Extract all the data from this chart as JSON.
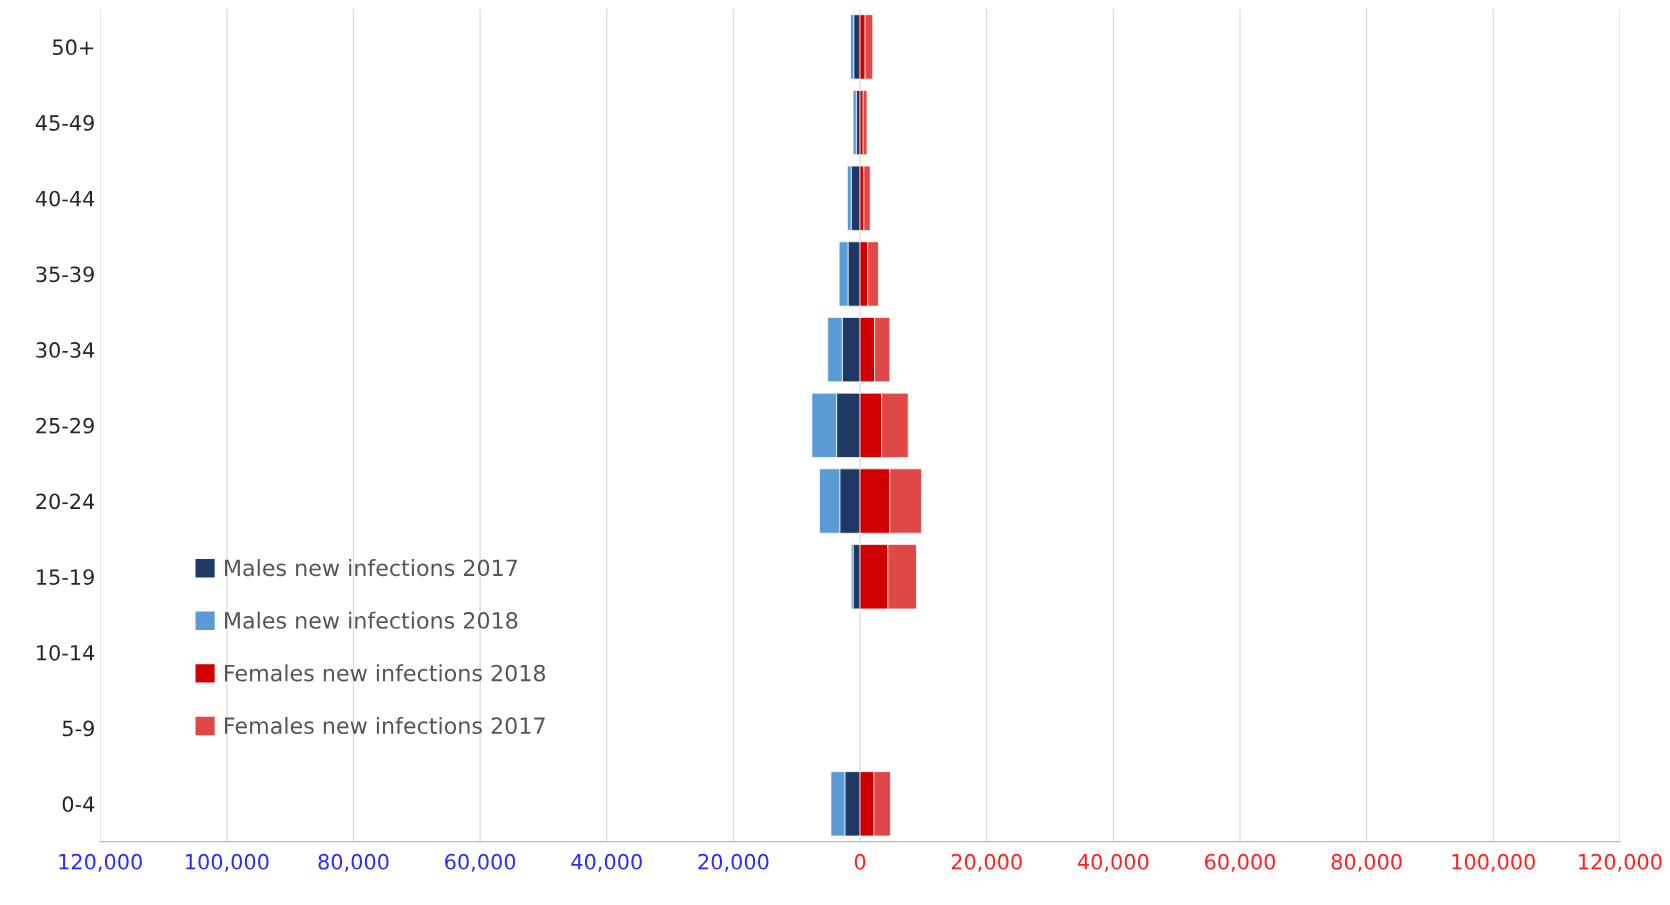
{
  "chart_data": {
    "type": "bar",
    "orientation": "horizontal",
    "stacked": true,
    "categories": [
      "50+",
      "45-49",
      "40-44",
      "35-39",
      "30-34",
      "25-29",
      "20-24",
      "15-19",
      "10-14",
      "5-9",
      "0-4"
    ],
    "series": [
      {
        "name": "Males new infections 2017",
        "color": "#203864",
        "values": [
          -1000,
          -600,
          -1400,
          -1900,
          -2800,
          -3700,
          -3200,
          -1100,
          null,
          null,
          -2400
        ]
      },
      {
        "name": "Males new infections 2018",
        "color": "#5b9bd5",
        "values": [
          -500,
          -500,
          -600,
          -1400,
          -2300,
          -3900,
          -3200,
          -300,
          null,
          null,
          -2200
        ]
      },
      {
        "name": "Females new infections 2018",
        "color": "#d00000",
        "values": [
          800,
          500,
          600,
          1200,
          2300,
          3400,
          4700,
          4400,
          null,
          null,
          2200
        ]
      },
      {
        "name": "Females new infections 2017",
        "color": "#e04848",
        "values": [
          1200,
          600,
          1000,
          1700,
          2400,
          4200,
          5000,
          4500,
          null,
          null,
          2600
        ]
      }
    ],
    "xlim": [
      -120000,
      120000
    ],
    "xticks": [
      {
        "value": -120000,
        "label": "120,000"
      },
      {
        "value": -100000,
        "label": "100,000"
      },
      {
        "value": -80000,
        "label": "80,000"
      },
      {
        "value": -60000,
        "label": "60,000"
      },
      {
        "value": -40000,
        "label": "40,000"
      },
      {
        "value": -20000,
        "label": "20,000"
      },
      0,
      {
        "value": 20000,
        "label": "20,000"
      },
      {
        "value": 40000,
        "label": "40,000"
      },
      {
        "value": 60000,
        "label": "60,000"
      },
      {
        "value": 80000,
        "label": "80,000"
      },
      {
        "value": 100000,
        "label": "100,000"
      },
      {
        "value": 120000,
        "label": "120,000"
      }
    ],
    "grid": "x",
    "legend": "bottom left"
  }
}
